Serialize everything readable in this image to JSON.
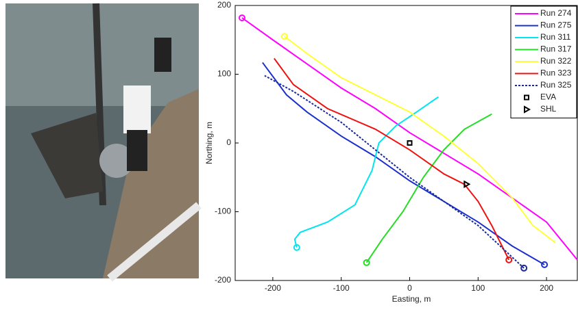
{
  "chart_data": {
    "type": "line",
    "xlabel": "Easting, m",
    "ylabel": "Northing, m",
    "xlim": [
      -255,
      245
    ],
    "ylim": [
      -200,
      200
    ],
    "xticks": [
      -200,
      -100,
      0,
      100,
      200
    ],
    "yticks": [
      -200,
      -100,
      0,
      100,
      200
    ],
    "legend": "upper right",
    "grid": false,
    "series": [
      {
        "name": "Run 274",
        "color": "#ff00ff",
        "dash": false,
        "x": [
          -245,
          -200,
          -150,
          -100,
          -50,
          0,
          50,
          100,
          150,
          200,
          245
        ],
        "y": [
          182,
          150,
          115,
          80,
          50,
          15,
          -15,
          -45,
          -80,
          -115,
          -170
        ]
      },
      {
        "name": "Run 275",
        "color": "#1a2fcc",
        "dash": false,
        "x": [
          197,
          150,
          100,
          50,
          0,
          -50,
          -100,
          -150,
          -180,
          -215
        ],
        "y": [
          -177,
          -150,
          -115,
          -85,
          -55,
          -20,
          10,
          45,
          70,
          117
        ]
      },
      {
        "name": "Run 311",
        "color": "#00e5ee",
        "dash": false,
        "x": [
          -165,
          -168,
          -160,
          -120,
          -80,
          -55,
          -45,
          -20,
          10,
          42
        ],
        "y": [
          -152,
          -140,
          -130,
          -115,
          -90,
          -40,
          0,
          25,
          45,
          67
        ]
      },
      {
        "name": "Run 317",
        "color": "#22dd22",
        "dash": false,
        "x": [
          -63,
          -40,
          -10,
          20,
          50,
          80,
          120
        ],
        "y": [
          -174,
          -140,
          -100,
          -50,
          -10,
          20,
          42
        ]
      },
      {
        "name": "Run 322",
        "color": "#ffff33",
        "dash": false,
        "x": [
          -183,
          -150,
          -100,
          -50,
          0,
          50,
          100,
          150,
          180,
          213
        ],
        "y": [
          155,
          130,
          95,
          70,
          45,
          10,
          -30,
          -80,
          -120,
          -145
        ]
      },
      {
        "name": "Run 323",
        "color": "#ee1111",
        "dash": false,
        "x": [
          145,
          120,
          100,
          80,
          50,
          0,
          -50,
          -120,
          -170,
          -198
        ],
        "y": [
          -170,
          -120,
          -85,
          -60,
          -45,
          -10,
          20,
          50,
          85,
          123
        ]
      },
      {
        "name": "Run 325",
        "color": "#1a2a99",
        "dash": true,
        "x": [
          167,
          100,
          50,
          0,
          -50,
          -100,
          -170,
          -212
        ],
        "y": [
          -182,
          -120,
          -85,
          -50,
          -10,
          30,
          75,
          98
        ]
      }
    ],
    "points": [
      {
        "name": "EVA",
        "marker": "square",
        "x": 0,
        "y": 0
      },
      {
        "name": "SHL",
        "marker": "triangle",
        "x": 83,
        "y": -60
      }
    ]
  }
}
